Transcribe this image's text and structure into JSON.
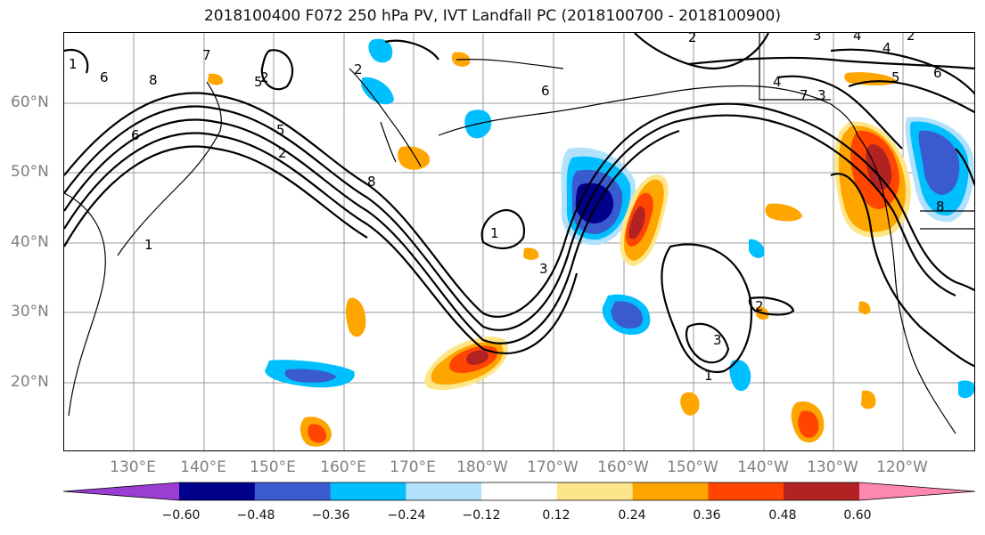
{
  "title": "2018100400 F072 250 hPa PV, IVT Landfall PC (2018100700 - 2018100900)",
  "map": {
    "lat_labels": [
      "60°N",
      "50°N",
      "40°N",
      "30°N",
      "20°N"
    ],
    "lon_labels": [
      "130°E",
      "140°E",
      "150°E",
      "160°E",
      "170°E",
      "180°W",
      "170°W",
      "160°W",
      "150°W",
      "140°W",
      "130°W",
      "120°W"
    ],
    "contour_labels": [
      "8",
      "6",
      "7",
      "5",
      "5",
      "2",
      "1",
      "2",
      "3",
      "6",
      "8",
      "4",
      "6",
      "5",
      "4",
      "3",
      "2",
      "1",
      "3",
      "4",
      "2",
      "7",
      "3",
      "2",
      "6",
      "1",
      "2",
      "1",
      "8"
    ]
  },
  "colorbar": {
    "ticks": [
      "−0.60",
      "−0.48",
      "−0.36",
      "−0.24",
      "−0.12",
      "0.12",
      "0.24",
      "0.36",
      "0.48",
      "0.60"
    ],
    "colors": [
      "#9b3cd3",
      "#00008b",
      "#3a5bd0",
      "#00bfff",
      "#b2e2fb",
      "#ffffff",
      "#fde68a",
      "#ffa500",
      "#ff4500",
      "#b22222",
      "#ff88b0"
    ]
  }
}
